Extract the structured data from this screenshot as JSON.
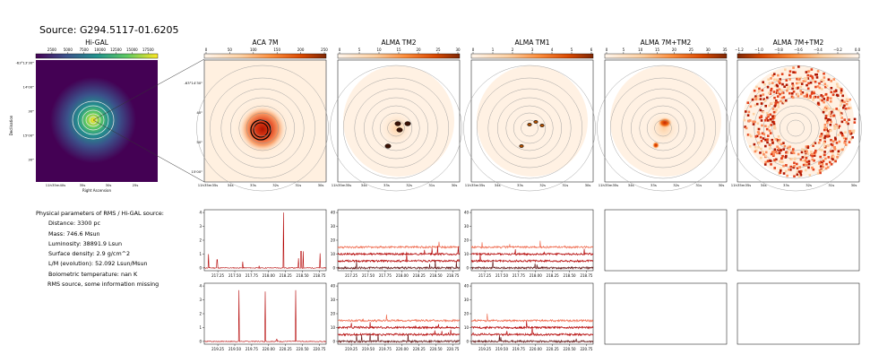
{
  "source_title": "Source: G294.5117-01.6205",
  "physical": {
    "heading": "Physical parameters of RMS / Hi-GAL source:",
    "lines": [
      "Distance: 3300 pc",
      "Mass: 746.6 Msun",
      "Luminosity: 38891.9 Lsun",
      "Surface density: 2.9 g/cm^2",
      "L/M (evolution): 52.092 Lsun/Msun",
      "Bolometric temperature: nan K"
    ],
    "note": "RMS source, some information missing"
  },
  "colors": {
    "viridis": [
      "#440154",
      "#3b528b",
      "#21918c",
      "#5ec962",
      "#fde725"
    ],
    "orange_map": [
      "#fff5eb",
      "#fdd0a2",
      "#fd8d3c",
      "#d94801",
      "#7f2704"
    ],
    "spec_dark": "#5a0a0a",
    "spec_mid": "#b30000",
    "spec_light": "#ef6548"
  },
  "hi_gal_panel": {
    "title": "Hi-GAL",
    "colorbar_ticks": [
      "2500",
      "5000",
      "7500",
      "10000",
      "12500",
      "15000",
      "17500"
    ],
    "y_ticks": [
      "-63°13'30\"",
      "14'00\"",
      "30\"",
      "15'00\"",
      "30\""
    ],
    "x_ticks": [
      "11h35m40s",
      "35s",
      "30s",
      "25s"
    ],
    "ylabel": "Declination",
    "xlabel": "Right Ascension"
  },
  "maps": [
    {
      "title": "ACA 7M",
      "colorbar_ticks": [
        "0",
        "50",
        "100",
        "150",
        "200",
        "250"
      ],
      "y_ticks": [
        "-63°14'30\"",
        "40\"",
        "50\"",
        "15'00\""
      ],
      "x_ticks": [
        "11h35m35s",
        "34s",
        "33s",
        "32s",
        "31s",
        "30s"
      ]
    },
    {
      "title": "ALMA TM2",
      "colorbar_ticks": [
        "0",
        "5",
        "10",
        "15",
        "20",
        "25",
        "30"
      ],
      "x_ticks": [
        "11h35m35s",
        "34s",
        "33s",
        "32s",
        "31s",
        "30s"
      ]
    },
    {
      "title": "ALMA TM1",
      "colorbar_ticks": [
        "0",
        "1",
        "2",
        "3",
        "4",
        "5",
        "6"
      ],
      "x_ticks": [
        "11h35m35s",
        "34s",
        "33s",
        "32s",
        "31s",
        "30s"
      ]
    },
    {
      "title": "ALMA 7M+TM2",
      "colorbar_ticks": [
        "0",
        "5",
        "10",
        "15",
        "20",
        "25",
        "30",
        "35"
      ],
      "x_ticks": [
        "11h35m35s",
        "34s",
        "33s",
        "32s",
        "31s",
        "30s"
      ]
    },
    {
      "title": "ALMA 7M+TM2",
      "colorbar_ticks": [
        "−1.2",
        "−1.0",
        "−0.8",
        "−0.6",
        "−0.4",
        "−0.2",
        "0.0"
      ],
      "x_ticks": [
        "11h35m35s",
        "34s",
        "33s",
        "32s",
        "31s",
        "30s"
      ]
    }
  ],
  "chart_data": [
    {
      "type": "line",
      "panel": "spectrum-aca-row1",
      "x_ticks": [
        "217.25",
        "217.50",
        "217.75",
        "218.00",
        "218.25",
        "218.50",
        "218.75"
      ],
      "y_ticks": [
        "0",
        "1",
        "2",
        "3",
        "4"
      ],
      "ylim": [
        -0.2,
        4.2
      ],
      "xlim": [
        217.05,
        218.85
      ],
      "series": [
        {
          "peaks": [
            [
              217.11,
              1.0
            ],
            [
              217.24,
              0.6
            ],
            [
              217.62,
              0.45
            ],
            [
              217.86,
              0.15
            ],
            [
              218.22,
              4.0
            ],
            [
              218.44,
              0.7
            ],
            [
              218.48,
              1.2
            ],
            [
              218.51,
              1.2
            ],
            [
              218.76,
              1.05
            ]
          ]
        }
      ]
    },
    {
      "type": "line",
      "panel": "spectrum-tm2-row1",
      "x_ticks": [
        "217.25",
        "217.50",
        "217.75",
        "218.00",
        "218.25",
        "218.50",
        "218.75"
      ],
      "y_ticks": [
        "0",
        "10",
        "20",
        "30",
        "40"
      ],
      "ylim": [
        -2,
        42
      ],
      "xlim": [
        217.05,
        218.85
      ],
      "series": [
        {
          "baseline": 15
        },
        {
          "baseline": 10
        },
        {
          "baseline": 5
        },
        {
          "baseline": 0
        }
      ]
    },
    {
      "type": "line",
      "panel": "spectrum-tm1-row1",
      "x_ticks": [
        "217.25",
        "217.50",
        "217.75",
        "218.00",
        "218.25",
        "218.50",
        "218.75"
      ],
      "y_ticks": [
        "0",
        "10",
        "20",
        "30",
        "40"
      ],
      "ylim": [
        -2,
        42
      ],
      "xlim": [
        217.05,
        218.85
      ],
      "series": [
        {
          "baseline": 15
        },
        {
          "baseline": 10
        },
        {
          "baseline": 5
        },
        {
          "baseline": 0
        }
      ]
    },
    {
      "type": "line",
      "panel": "spectrum-aca-row2",
      "x_ticks": [
        "219.25",
        "219.50",
        "219.75",
        "220.00",
        "220.25",
        "220.50",
        "220.75"
      ],
      "y_ticks": [
        "0",
        "1",
        "2",
        "3",
        "4"
      ],
      "ylim": [
        -0.2,
        4.2
      ],
      "xlim": [
        219.05,
        220.85
      ],
      "series": [
        {
          "peaks": [
            [
              219.56,
              3.7
            ],
            [
              219.95,
              3.6
            ],
            [
              220.4,
              3.7
            ],
            [
              220.12,
              0.15
            ]
          ]
        }
      ]
    },
    {
      "type": "line",
      "panel": "spectrum-tm2-row2",
      "x_ticks": [
        "219.25",
        "219.50",
        "219.75",
        "220.00",
        "220.25",
        "220.50",
        "220.75"
      ],
      "y_ticks": [
        "0",
        "10",
        "20",
        "30",
        "40"
      ],
      "ylim": [
        -2,
        42
      ],
      "xlim": [
        219.05,
        220.85
      ],
      "series": [
        {
          "baseline": 15
        },
        {
          "baseline": 10
        },
        {
          "baseline": 5
        },
        {
          "baseline": 0
        }
      ]
    },
    {
      "type": "line",
      "panel": "spectrum-tm1-row2",
      "x_ticks": [
        "219.25",
        "219.50",
        "219.75",
        "220.00",
        "220.25",
        "220.50",
        "220.75"
      ],
      "y_ticks": [
        "0",
        "10",
        "20",
        "30",
        "40"
      ],
      "ylim": [
        -2,
        42
      ],
      "xlim": [
        219.05,
        220.85
      ],
      "series": [
        {
          "baseline": 15
        },
        {
          "baseline": 10
        },
        {
          "baseline": 5
        },
        {
          "baseline": 0
        }
      ]
    }
  ]
}
